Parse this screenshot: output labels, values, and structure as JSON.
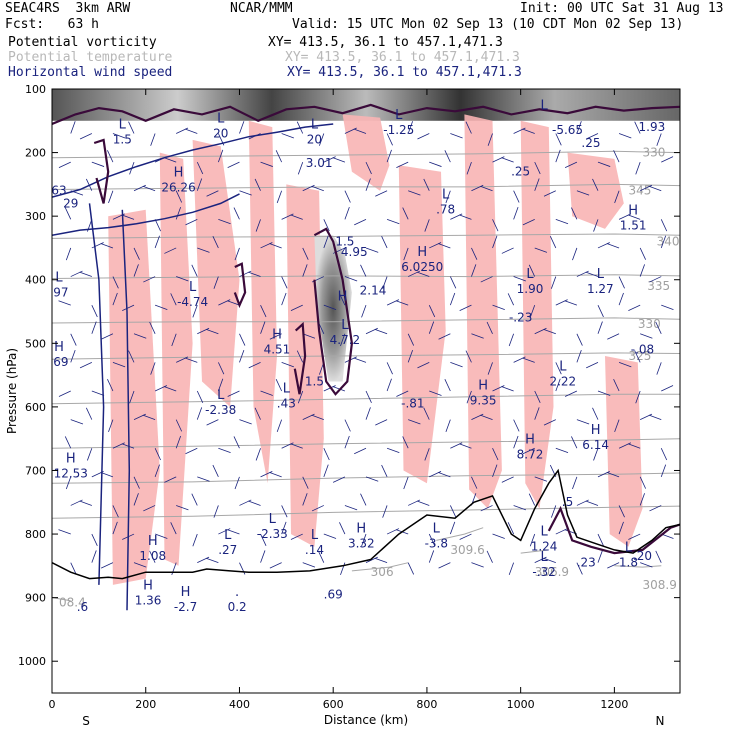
{
  "header": {
    "model": "SEAC4RS  3km ARW",
    "center": "NCAR/MMM",
    "init": "Init: 00 UTC Sat 31 Aug 13",
    "fcst": "Fcst:   63 h",
    "valid": "Valid: 15 UTC Mon 02 Sep 13 (10 CDT Mon 02 Sep 13)",
    "fields": [
      {
        "name": "Potential vorticity",
        "xy": "XY= 413.5, 36.1 to 457.1,471.3",
        "color": "#000000"
      },
      {
        "name": "Potential temperature",
        "xy": "XY= 413.5, 36.1 to 457.1,471.3",
        "color": "#b8b8b8"
      },
      {
        "name": "Horizontal wind speed",
        "xy": "XY= 413.5, 36.1 to 457.1,471.3",
        "color": "#1a237e"
      }
    ]
  },
  "chart_data": {
    "type": "cross-section",
    "xlabel": "Distance (km)",
    "ylabel": "Pressure (hPa)",
    "xlim": [
      0,
      1340
    ],
    "ylim": [
      1050,
      100
    ],
    "x_ticks": [
      0,
      200,
      400,
      600,
      800,
      1000,
      1200
    ],
    "y_ticks": [
      100,
      200,
      300,
      400,
      500,
      600,
      700,
      800,
      900,
      1000
    ],
    "left_end_label": "S",
    "right_end_label": "N",
    "colors": {
      "pv_contour": "#3a0a3a",
      "wind_contour": "#1a237e",
      "shading_pink": "#f8b4b4",
      "theta_contour": "#a8a8a8",
      "terrain": "#000000"
    },
    "terrain": {
      "x": [
        0,
        40,
        80,
        120,
        150,
        200,
        250,
        300,
        330,
        380,
        420,
        480,
        550,
        620,
        680,
        740,
        800,
        860,
        900,
        940,
        980,
        1000,
        1030,
        1060,
        1080,
        1100,
        1120,
        1160,
        1200,
        1240,
        1280,
        1310,
        1340
      ],
      "p": [
        845,
        860,
        870,
        868,
        870,
        860,
        860,
        860,
        855,
        858,
        860,
        860,
        858,
        850,
        840,
        800,
        770,
        775,
        750,
        740,
        800,
        810,
        760,
        720,
        700,
        770,
        805,
        815,
        825,
        830,
        810,
        790,
        785
      ]
    },
    "theta_contours": [
      {
        "label": "330",
        "x": [
          0,
          300,
          600,
          900,
          1200,
          1340
        ],
        "p": [
          208,
          206,
          204,
          202,
          198,
          200
        ],
        "label_x": 1260,
        "label_p": 200
      },
      {
        "label": "345",
        "x": [
          0,
          300,
          600,
          900,
          1200,
          1340
        ],
        "p": [
          258,
          256,
          254,
          254,
          250,
          252
        ],
        "label_x": 1230,
        "label_p": 260
      },
      {
        "label": "340",
        "x": [
          0,
          300,
          600,
          900,
          1200,
          1340
        ],
        "p": [
          335,
          333,
          332,
          330,
          328,
          330
        ],
        "label_x": 1290,
        "label_p": 340
      },
      {
        "label": "335",
        "x": [
          0,
          300,
          600,
          900,
          1200,
          1340
        ],
        "p": [
          398,
          396,
          394,
          395,
          392,
          394
        ],
        "label_x": 1270,
        "label_p": 410
      },
      {
        "label": "330",
        "x": [
          0,
          300,
          600,
          900,
          1200,
          1340
        ],
        "p": [
          468,
          466,
          466,
          463,
          460,
          462
        ],
        "label_x": 1250,
        "label_p": 470
      },
      {
        "label": "325",
        "x": [
          0,
          300,
          600,
          900,
          1200,
          1340
        ],
        "p": [
          525,
          522,
          520,
          518,
          515,
          516
        ],
        "label_x": 1230,
        "label_p": 520
      },
      {
        "label": "",
        "x": [
          0,
          300,
          600,
          900,
          1200,
          1340
        ],
        "p": [
          595,
          592,
          588,
          584,
          580,
          580
        ],
        "label_x": 0,
        "label_p": 0
      },
      {
        "label": "",
        "x": [
          0,
          300,
          600,
          900,
          1200,
          1340
        ],
        "p": [
          665,
          662,
          658,
          655,
          652,
          650
        ],
        "label_x": 0,
        "label_p": 0
      },
      {
        "label": "",
        "x": [
          0,
          300,
          600,
          900,
          1200,
          1340
        ],
        "p": [
          720,
          718,
          712,
          708,
          706,
          704
        ],
        "label_x": 0,
        "label_p": 0
      },
      {
        "label": "",
        "x": [
          0,
          300,
          600,
          900,
          1200,
          1340
        ],
        "p": [
          775,
          772,
          766,
          762,
          758,
          756
        ],
        "label_x": 0,
        "label_p": 0
      },
      {
        "label": "306",
        "x": [
          640,
          720,
          760
        ],
        "p": [
          858,
          852,
          845
        ],
        "label_x": 680,
        "label_p": 860
      },
      {
        "label": "309.6",
        "x": [
          820,
          880,
          920
        ],
        "p": [
          810,
          800,
          790
        ],
        "label_x": 850,
        "label_p": 825
      },
      {
        "label": "306.9",
        "x": [
          1000,
          1060
        ],
        "p": [
          830,
          825
        ],
        "label_x": 1030,
        "label_p": 860
      },
      {
        "label": "308.9",
        "x": [
          1200,
          1260,
          1300
        ],
        "p": [
          850,
          852,
          850
        ],
        "label_x": 1260,
        "label_p": 880
      },
      {
        "label": "08.4",
        "x": [
          0,
          40
        ],
        "p": [
          900,
          905
        ],
        "label_x": 15,
        "label_p": 908
      }
    ],
    "wind_contours": [
      {
        "x": [
          0,
          60,
          120,
          180,
          240,
          300,
          360,
          420,
          480,
          540,
          600
        ],
        "p": [
          270,
          258,
          238,
          222,
          208,
          196,
          186,
          175,
          168,
          160,
          155
        ]
      },
      {
        "x": [
          0,
          60,
          120,
          180,
          240,
          300,
          360,
          400
        ],
        "p": [
          330,
          322,
          318,
          312,
          304,
          294,
          280,
          265
        ]
      },
      {
        "x": [
          80,
          100,
          110,
          100
        ],
        "p": [
          280,
          400,
          600,
          880
        ]
      },
      {
        "x": [
          150,
          160,
          165,
          160
        ],
        "p": [
          290,
          450,
          700,
          920
        ]
      }
    ],
    "pv_contours": [
      {
        "x": [
          0,
          50,
          100,
          150,
          200,
          260,
          320,
          380,
          440,
          500,
          560,
          620,
          680,
          740,
          800,
          860,
          920,
          980,
          1040,
          1100,
          1160,
          1220,
          1280,
          1340
        ],
        "p": [
          155,
          140,
          130,
          135,
          150,
          132,
          140,
          128,
          150,
          132,
          128,
          138,
          125,
          140,
          130,
          135,
          128,
          140,
          132,
          138,
          128,
          134,
          130,
          128
        ]
      },
      {
        "x": [
          560,
          585,
          600,
          620,
          640,
          630,
          605,
          585,
          570,
          560
        ],
        "p": [
          330,
          320,
          340,
          400,
          500,
          560,
          580,
          560,
          480,
          400
        ]
      },
      {
        "x": [
          390,
          405,
          412,
          400,
          390
        ],
        "p": [
          380,
          375,
          420,
          440,
          420
        ]
      },
      {
        "x": [
          520,
          535,
          540,
          528,
          518
        ],
        "p": [
          480,
          470,
          520,
          580,
          540
        ]
      },
      {
        "x": [
          90,
          110,
          120,
          110,
          95
        ],
        "p": [
          185,
          180,
          230,
          280,
          240
        ]
      },
      {
        "x": [
          1060,
          1085,
          1110,
          1150,
          1200,
          1260,
          1320,
          1340
        ],
        "p": [
          795,
          760,
          810,
          820,
          830,
          825,
          790,
          785
        ]
      }
    ],
    "shading": [
      {
        "x": [
          120,
          200,
          230,
          200,
          130
        ],
        "p": [
          300,
          290,
          700,
          870,
          880
        ]
      },
      {
        "x": [
          230,
          280,
          300,
          270,
          240
        ],
        "p": [
          200,
          210,
          500,
          850,
          840
        ]
      },
      {
        "x": [
          300,
          360,
          400,
          380,
          320
        ],
        "p": [
          180,
          190,
          400,
          600,
          560
        ]
      },
      {
        "x": [
          420,
          470,
          480,
          460,
          430
        ],
        "p": [
          150,
          160,
          520,
          720,
          600
        ]
      },
      {
        "x": [
          500,
          570,
          580,
          560,
          510
        ],
        "p": [
          250,
          260,
          650,
          820,
          800
        ]
      },
      {
        "x": [
          620,
          700,
          720,
          700,
          640
        ],
        "p": [
          140,
          145,
          220,
          260,
          230
        ]
      },
      {
        "x": [
          740,
          830,
          840,
          800,
          750
        ],
        "p": [
          220,
          230,
          480,
          720,
          700
        ]
      },
      {
        "x": [
          880,
          940,
          960,
          930,
          890
        ],
        "p": [
          140,
          150,
          700,
          760,
          730
        ]
      },
      {
        "x": [
          1000,
          1060,
          1070,
          1040,
          1010
        ],
        "p": [
          150,
          160,
          600,
          760,
          720
        ]
      },
      {
        "x": [
          1100,
          1200,
          1220,
          1180,
          1110
        ],
        "p": [
          200,
          210,
          280,
          320,
          300
        ]
      },
      {
        "x": [
          1180,
          1250,
          1260,
          1230,
          1190
        ],
        "p": [
          520,
          530,
          760,
          820,
          800
        ]
      }
    ],
    "gray_blob": {
      "x": [
        560,
        600,
        625,
        640,
        620,
        590,
        565
      ],
      "p": [
        330,
        330,
        360,
        420,
        560,
        560,
        440
      ]
    },
    "top_band": {
      "p_top": 100,
      "p_bottom": 150
    },
    "extrema": [
      {
        "type": "L",
        "value": "1.5",
        "x": 150,
        "p": 175
      },
      {
        "type": "H",
        "value": "26.26",
        "x": 270,
        "p": 250
      },
      {
        "type": "L",
        "value": "20",
        "x": 360,
        "p": 165
      },
      {
        "type": "L",
        "value": "20",
        "x": 560,
        "p": 175
      },
      {
        "type": "",
        "value": "3.01",
        "x": 570,
        "p": 212
      },
      {
        "type": "L",
        "value": "-1.25",
        "x": 740,
        "p": 160
      },
      {
        "type": "",
        "value": "63",
        "x": 15,
        "p": 255
      },
      {
        "type": "",
        "value": "29",
        "x": 40,
        "p": 275
      },
      {
        "type": "L",
        "value": "",
        "x": 1050,
        "p": 145
      },
      {
        "type": "",
        "value": "-5.65",
        "x": 1100,
        "p": 160
      },
      {
        "type": "",
        "value": "1.93",
        "x": 1280,
        "p": 155
      },
      {
        "type": "",
        "value": ".25",
        "x": 1150,
        "p": 180
      },
      {
        "type": "",
        "value": ".25",
        "x": 1000,
        "p": 225
      },
      {
        "type": "L",
        "value": ".78",
        "x": 840,
        "p": 285
      },
      {
        "type": "H",
        "value": "1.51",
        "x": 1240,
        "p": 310
      },
      {
        "type": "",
        "value": "1.5",
        "x": 625,
        "p": 335
      },
      {
        "type": "",
        "value": "4.95",
        "x": 645,
        "p": 352
      },
      {
        "type": "H",
        "value": "6.0250",
        "x": 790,
        "p": 375
      },
      {
        "type": "",
        "value": "2.14",
        "x": 685,
        "p": 412
      },
      {
        "type": "L",
        "value": ".97",
        "x": 15,
        "p": 415
      },
      {
        "type": "L",
        "value": "-4.74",
        "x": 300,
        "p": 430
      },
      {
        "type": "L",
        "value": "1.90",
        "x": 1020,
        "p": 410
      },
      {
        "type": "L",
        "value": "1.27",
        "x": 1170,
        "p": 410
      },
      {
        "type": "",
        "value": "-.23",
        "x": 1000,
        "p": 455
      },
      {
        "type": "H",
        "value": "",
        "x": 620,
        "p": 445
      },
      {
        "type": "L",
        "value": "4.7.2",
        "x": 625,
        "p": 490
      },
      {
        "type": "H",
        "value": "4.51",
        "x": 480,
        "p": 505
      },
      {
        "type": "",
        "value": "-.08",
        "x": 1260,
        "p": 505
      },
      {
        "type": "H",
        "value": ".69",
        "x": 15,
        "p": 525
      },
      {
        "type": "",
        "value": "1.5",
        "x": 560,
        "p": 555
      },
      {
        "type": "L",
        "value": "2.22",
        "x": 1090,
        "p": 555
      },
      {
        "type": "",
        "value": "-.81",
        "x": 770,
        "p": 590
      },
      {
        "type": "H",
        "value": "9.35",
        "x": 920,
        "p": 585
      },
      {
        "type": "L",
        "value": ".43",
        "x": 500,
        "p": 590
      },
      {
        "type": "L",
        "value": "-2.38",
        "x": 360,
        "p": 600
      },
      {
        "type": "H",
        "value": "6.14",
        "x": 1160,
        "p": 655
      },
      {
        "type": "H",
        "value": "8.72",
        "x": 1020,
        "p": 670
      },
      {
        "type": "H",
        "value": "12.53",
        "x": 40,
        "p": 700
      },
      {
        "type": "",
        "value": ".5",
        "x": 1100,
        "p": 745
      },
      {
        "type": "L",
        "value": "-2.33",
        "x": 470,
        "p": 795
      },
      {
        "type": "H",
        "value": "3.32",
        "x": 660,
        "p": 810
      },
      {
        "type": "L",
        "value": ".27",
        "x": 375,
        "p": 820
      },
      {
        "type": "L",
        "value": ".14",
        "x": 560,
        "p": 820
      },
      {
        "type": "L",
        "value": "-3.8",
        "x": 820,
        "p": 810
      },
      {
        "type": "L",
        "value": "1.24",
        "x": 1050,
        "p": 815
      },
      {
        "type": "H",
        "value": "1.08",
        "x": 215,
        "p": 830
      },
      {
        "type": "",
        "value": ".23",
        "x": 1140,
        "p": 840
      },
      {
        "type": "L",
        "value": "1.8",
        "x": 1230,
        "p": 840
      },
      {
        "type": "",
        "value": ".20",
        "x": 1260,
        "p": 830
      },
      {
        "type": "L",
        "value": "-.32",
        "x": 1050,
        "p": 855
      },
      {
        "type": "H",
        "value": "1.36",
        "x": 205,
        "p": 900
      },
      {
        "type": "H",
        "value": "-2.7",
        "x": 285,
        "p": 910
      },
      {
        "type": ".",
        "value": "0.2",
        "x": 395,
        "p": 910
      },
      {
        "type": "",
        "value": ".69",
        "x": 600,
        "p": 890
      },
      {
        "type": "",
        "value": ".6",
        "x": 65,
        "p": 910
      }
    ]
  }
}
